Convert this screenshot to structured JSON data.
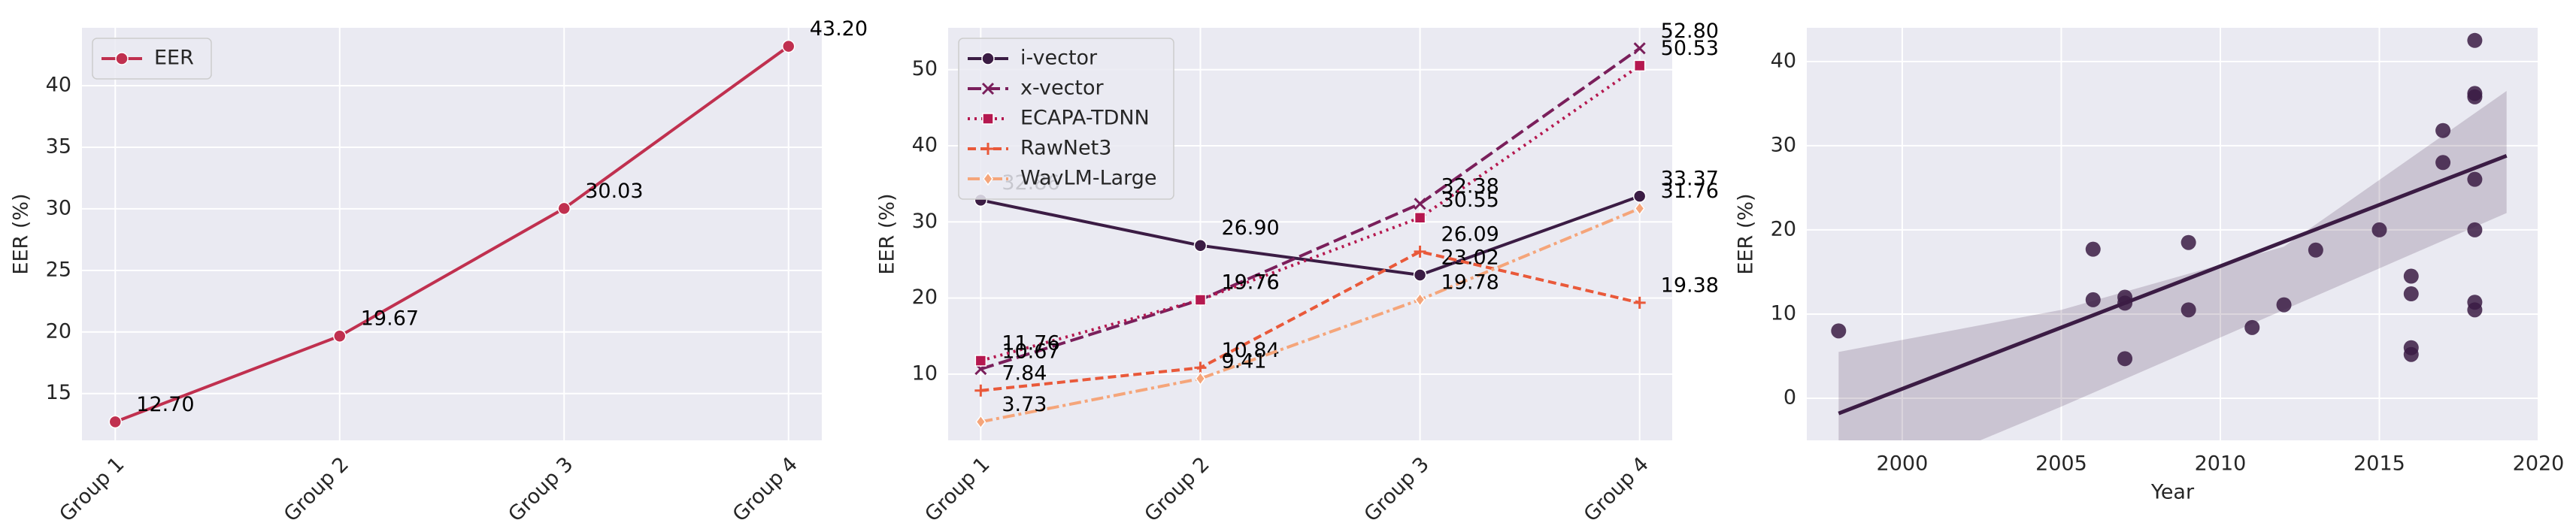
{
  "chart_data": [
    {
      "type": "line",
      "ylabel": "EER (%)",
      "categories": [
        "Group 1",
        "Group 2",
        "Group 3",
        "Group 4"
      ],
      "series": [
        {
          "name": "EER",
          "color": "#c0304f",
          "marker": "o",
          "linestyle": "solid",
          "values": [
            12.7,
            19.67,
            30.03,
            43.2
          ],
          "value_labels": [
            "12.70",
            "19.67",
            "30.03",
            "43.20"
          ]
        }
      ],
      "ylim": [
        11.2,
        44.7
      ],
      "yticks": [
        15,
        20,
        25,
        30,
        35,
        40
      ],
      "grid": true,
      "legend": "upper left"
    },
    {
      "type": "line",
      "ylabel": "EER (%)",
      "categories": [
        "Group 1",
        "Group 2",
        "Group 3",
        "Group 4"
      ],
      "series": [
        {
          "name": "i-vector",
          "color": "#3b1c44",
          "marker": "o",
          "linestyle": "solid",
          "values": [
            32.86,
            26.9,
            23.02,
            33.37
          ],
          "value_labels": [
            "32.86",
            "26.90",
            "23.02",
            "33.37"
          ]
        },
        {
          "name": "x-vector",
          "color": "#7a1f5b",
          "marker": "x",
          "linestyle": "dash",
          "values": [
            10.67,
            19.76,
            32.38,
            52.8
          ],
          "value_labels": [
            "10.67",
            "19.76",
            "32.38",
            "52.80"
          ]
        },
        {
          "name": "ECAPA-TDNN",
          "color": "#b5184f",
          "marker": "s",
          "linestyle": "dotted",
          "values": [
            11.76,
            19.76,
            30.55,
            50.53
          ],
          "value_labels": [
            "11.76",
            "19.76",
            "30.55",
            "50.53"
          ]
        },
        {
          "name": "RawNet3",
          "color": "#e9593a",
          "marker": "+",
          "linestyle": "shortdash",
          "values": [
            7.84,
            10.84,
            26.09,
            19.38
          ],
          "value_labels": [
            "7.84",
            "10.84",
            "26.09",
            "19.38"
          ]
        },
        {
          "name": "WavLM-Large",
          "color": "#f5a57a",
          "marker": "d",
          "linestyle": "dashdot",
          "values": [
            3.73,
            9.41,
            19.78,
            31.76
          ],
          "value_labels": [
            "3.73",
            "9.41",
            "19.78",
            "31.76"
          ]
        }
      ],
      "ylim": [
        1.3,
        55.5
      ],
      "yticks": [
        10,
        20,
        30,
        40,
        50
      ],
      "grid": true,
      "legend": "upper left"
    },
    {
      "type": "scatter",
      "xlabel": "Year",
      "ylabel": "EER (%)",
      "color": "#3b1c44",
      "x": [
        1998,
        2006,
        2006,
        2007,
        2007,
        2007,
        2009,
        2009,
        2011,
        2012,
        2013,
        2015,
        2016,
        2016,
        2016,
        2016,
        2017,
        2017,
        2018,
        2018,
        2018,
        2018,
        2018,
        2018,
        2018
      ],
      "y": [
        8,
        17.7,
        11.7,
        12,
        11.3,
        4.7,
        18.5,
        10.5,
        8.4,
        11.1,
        17.6,
        20,
        14.5,
        12.4,
        6,
        5.2,
        31.8,
        28,
        42.5,
        36.2,
        35.8,
        26,
        20,
        11.4,
        10.5
      ],
      "regression": {
        "x": [
          1998,
          2019
        ],
        "y": [
          -1.8,
          28.8
        ]
      },
      "confidence_band": {
        "x": [
          1998,
          2005,
          2012,
          2019
        ],
        "lower": [
          -12,
          -1,
          10.5,
          22
        ],
        "upper": [
          5.5,
          10.5,
          18,
          36.5
        ]
      },
      "xlim": [
        1997,
        2020
      ],
      "xticks": [
        2000,
        2005,
        2010,
        2015,
        2020
      ],
      "ylim": [
        -5,
        44
      ],
      "yticks": [
        0,
        10,
        20,
        30,
        40
      ],
      "grid": true
    }
  ]
}
